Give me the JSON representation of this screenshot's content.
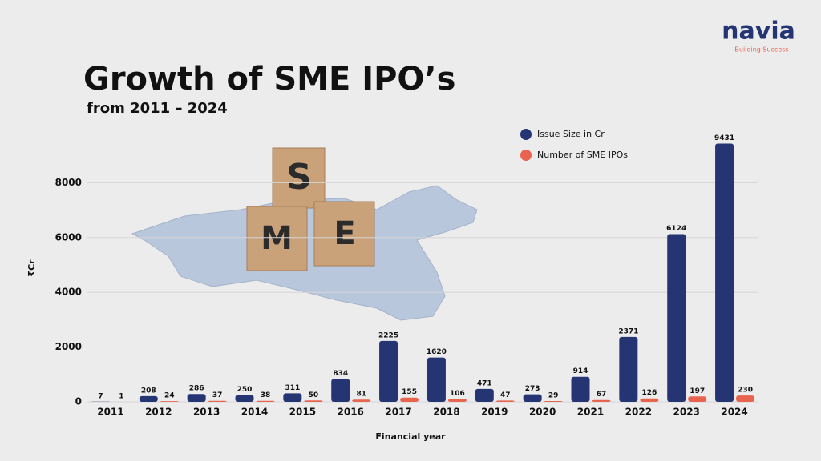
{
  "brand": {
    "name": "navia",
    "tagline": "Building Success"
  },
  "illustration": {
    "blocks": [
      "S",
      "M",
      "E"
    ]
  },
  "chart_data": {
    "type": "bar",
    "title": "Growth of SME IPO’s",
    "subtitle": "from 2011 – 2024",
    "y_label": "₹Cr",
    "x_label": "Financial year",
    "categories": [
      "2011",
      "2012",
      "2013",
      "2014",
      "2015",
      "2016",
      "2017",
      "2018",
      "2019",
      "2020",
      "2021",
      "2022",
      "2023",
      "2024"
    ],
    "series": [
      {
        "name": "Issue Size in Cr",
        "color": "#253574",
        "values": [
          7,
          208,
          286,
          250,
          311,
          834,
          2225,
          1620,
          471,
          273,
          914,
          2371,
          6124,
          9431
        ]
      },
      {
        "name": "Number of SME IPOs",
        "color": "#e9644f",
        "values": [
          1,
          24,
          37,
          38,
          50,
          81,
          155,
          106,
          47,
          29,
          67,
          126,
          197,
          230
        ]
      }
    ],
    "ylim": [
      0,
      10000
    ],
    "yticks": [
      0,
      2000,
      4000,
      6000,
      8000
    ],
    "grid": true,
    "legend": "top-right"
  }
}
